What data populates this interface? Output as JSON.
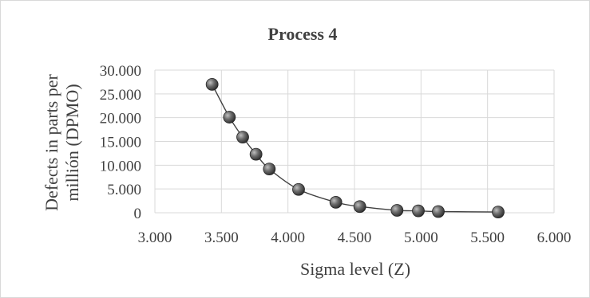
{
  "chart_data": {
    "type": "scatter",
    "title": "Process 4",
    "xlabel": "Sigma level (Z)",
    "ylabel_lines": [
      "Defects in parts per",
      "millión (DPMO)"
    ],
    "xlim": [
      3.0,
      6.0
    ],
    "ylim": [
      0,
      30000
    ],
    "x_ticks": [
      3.0,
      3.5,
      4.0,
      4.5,
      5.0,
      5.5,
      6.0
    ],
    "x_tick_labels": [
      "3.000",
      "3.500",
      "4.000",
      "4.500",
      "5.000",
      "5.500",
      "6.000"
    ],
    "y_ticks": [
      0,
      5000,
      10000,
      15000,
      20000,
      25000,
      30000
    ],
    "y_tick_labels": [
      "0",
      "5.000",
      "10.000",
      "15.000",
      "20.000",
      "25.000",
      "30.000"
    ],
    "grid": true,
    "connected_smooth_line": true,
    "marker_color": "#505050",
    "line_color": "#404040",
    "series": [
      {
        "x": [
          3.43,
          3.56,
          3.66,
          3.76,
          3.86,
          4.08,
          4.36,
          4.54,
          4.82,
          4.98,
          5.13,
          5.58
        ],
        "y": [
          27000,
          20100,
          15900,
          12300,
          9200,
          4900,
          2200,
          1300,
          500,
          400,
          250,
          150
        ]
      }
    ]
  }
}
